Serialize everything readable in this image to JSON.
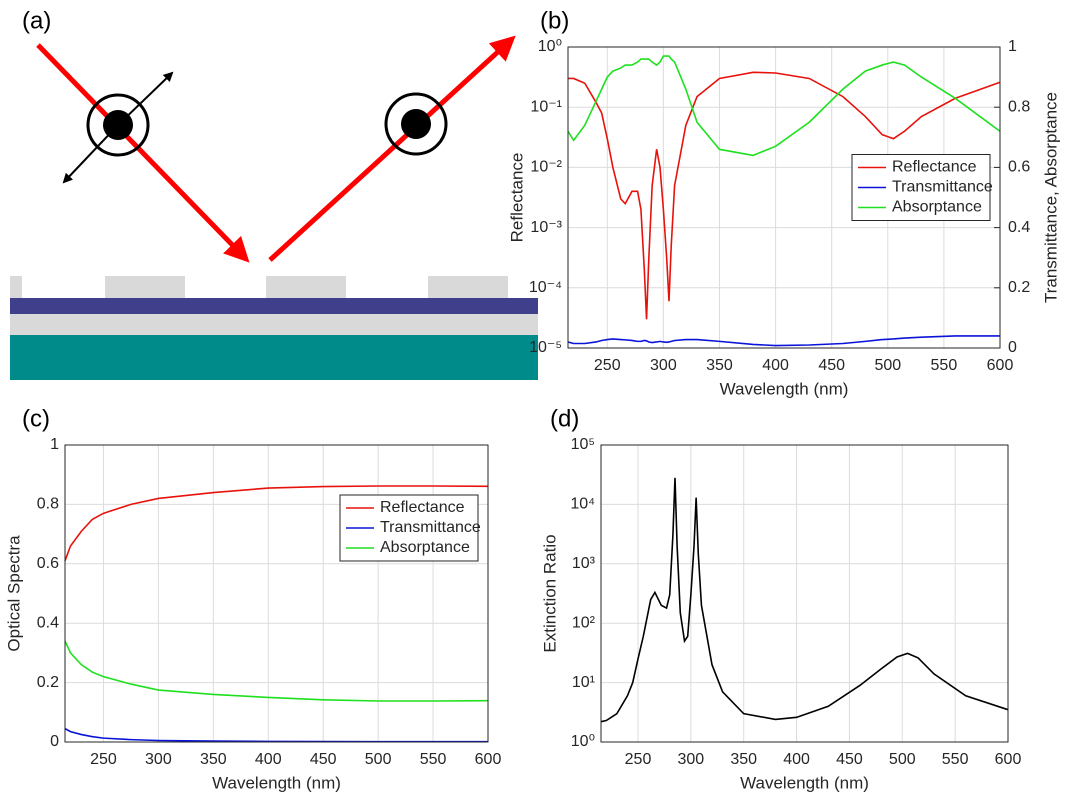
{
  "diagram": {
    "label": "(a)"
  },
  "chart_data": [
    {
      "type": "line",
      "panel_label": "(b)",
      "xlabel": "Wavelength (nm)",
      "ylabel": "Reflectance",
      "y2label": "Transmittance, Absorptance",
      "xlim": [
        215,
        600
      ],
      "xticks": [
        250,
        300,
        350,
        400,
        450,
        500,
        550,
        600
      ],
      "yscale": "log",
      "ylim": [
        1e-05,
        1
      ],
      "yticks": [
        {
          "value": 1e-05,
          "label": "10⁻⁵"
        },
        {
          "value": 0.0001,
          "label": "10⁻⁴"
        },
        {
          "value": 0.001,
          "label": "10⁻³"
        },
        {
          "value": 0.01,
          "label": "10⁻²"
        },
        {
          "value": 0.1,
          "label": "10⁻¹"
        },
        {
          "value": 1,
          "label": "10⁰"
        }
      ],
      "y2lim": [
        0,
        1
      ],
      "y2ticks": [
        0,
        0.2,
        0.4,
        0.6,
        0.8,
        1
      ],
      "grid": true,
      "legend": "right",
      "x": [
        215,
        220,
        230,
        240,
        245,
        250,
        255,
        262,
        266,
        272,
        277,
        280,
        283,
        285,
        287,
        290,
        294,
        297,
        300,
        303,
        305,
        307,
        310,
        320,
        330,
        350,
        380,
        400,
        430,
        460,
        480,
        495,
        505,
        515,
        530,
        560,
        600
      ],
      "series": [
        {
          "name": "Reflectance",
          "color": "#e8120c",
          "values": [
            0.3,
            0.3,
            0.25,
            0.12,
            0.08,
            0.03,
            0.01,
            0.003,
            0.0025,
            0.004,
            0.004,
            0.002,
            0.0002,
            3e-05,
            0.0003,
            0.005,
            0.02,
            0.01,
            0.002,
            0.0003,
            6e-05,
            0.0005,
            0.005,
            0.05,
            0.15,
            0.3,
            0.38,
            0.37,
            0.3,
            0.15,
            0.07,
            0.035,
            0.03,
            0.04,
            0.07,
            0.14,
            0.26
          ]
        },
        {
          "name": "Transmittance",
          "color": "#0a14d8",
          "axis": "y2",
          "values": [
            0.02,
            0.015,
            0.015,
            0.02,
            0.025,
            0.028,
            0.03,
            0.028,
            0.027,
            0.025,
            0.022,
            0.022,
            0.025,
            0.024,
            0.02,
            0.018,
            0.02,
            0.022,
            0.02,
            0.019,
            0.02,
            0.022,
            0.025,
            0.028,
            0.028,
            0.022,
            0.012,
            0.008,
            0.01,
            0.015,
            0.022,
            0.028,
            0.03,
            0.033,
            0.036,
            0.04,
            0.04
          ]
        },
        {
          "name": "Absorptance",
          "color": "#1ee01e",
          "axis": "y2",
          "values": [
            0.72,
            0.69,
            0.74,
            0.82,
            0.86,
            0.9,
            0.92,
            0.93,
            0.94,
            0.94,
            0.95,
            0.96,
            0.96,
            0.96,
            0.96,
            0.95,
            0.94,
            0.95,
            0.97,
            0.97,
            0.97,
            0.96,
            0.95,
            0.86,
            0.75,
            0.66,
            0.64,
            0.67,
            0.75,
            0.86,
            0.92,
            0.94,
            0.95,
            0.94,
            0.9,
            0.83,
            0.72
          ]
        }
      ]
    },
    {
      "type": "line",
      "panel_label": "(c)",
      "xlabel": "Wavelength (nm)",
      "ylabel": "Optical Spectra",
      "xlim": [
        215,
        600
      ],
      "xticks": [
        250,
        300,
        350,
        400,
        450,
        500,
        550,
        600
      ],
      "ylim": [
        0,
        1
      ],
      "yticks": [
        0,
        0.2,
        0.4,
        0.6,
        0.8,
        1
      ],
      "grid": true,
      "legend": "upper right",
      "x": [
        215,
        220,
        230,
        240,
        250,
        275,
        300,
        350,
        400,
        450,
        500,
        550,
        600
      ],
      "series": [
        {
          "name": "Reflectance",
          "color": "#e8120c",
          "values": [
            0.61,
            0.66,
            0.71,
            0.75,
            0.77,
            0.8,
            0.82,
            0.84,
            0.855,
            0.86,
            0.862,
            0.862,
            0.861
          ]
        },
        {
          "name": "Transmittance",
          "color": "#0a14d8",
          "values": [
            0.045,
            0.035,
            0.025,
            0.018,
            0.013,
            0.008,
            0.005,
            0.003,
            0.002,
            0.0015,
            0.001,
            0.001,
            0.001
          ]
        },
        {
          "name": "Absorptance",
          "color": "#1ee01e",
          "values": [
            0.34,
            0.3,
            0.26,
            0.235,
            0.22,
            0.195,
            0.175,
            0.16,
            0.15,
            0.142,
            0.138,
            0.138,
            0.139
          ]
        }
      ]
    },
    {
      "type": "line",
      "panel_label": "(d)",
      "xlabel": "Wavelength (nm)",
      "ylabel": "Extinction Ratio",
      "xlim": [
        215,
        600
      ],
      "xticks": [
        250,
        300,
        350,
        400,
        450,
        500,
        550,
        600
      ],
      "yscale": "log",
      "ylim": [
        1,
        100000
      ],
      "yticks": [
        {
          "value": 1,
          "label": "10⁰"
        },
        {
          "value": 10,
          "label": "10¹"
        },
        {
          "value": 100,
          "label": "10²"
        },
        {
          "value": 1000,
          "label": "10³"
        },
        {
          "value": 10000,
          "label": "10⁴"
        },
        {
          "value": 100000,
          "label": "10⁵"
        }
      ],
      "grid": true,
      "x": [
        215,
        220,
        230,
        240,
        245,
        250,
        255,
        262,
        266,
        272,
        277,
        280,
        283,
        285,
        287,
        290,
        294,
        297,
        300,
        303,
        305,
        307,
        310,
        320,
        330,
        350,
        380,
        400,
        430,
        460,
        480,
        495,
        505,
        515,
        530,
        560,
        600
      ],
      "series": [
        {
          "color": "#000000",
          "values": [
            2.2,
            2.3,
            3,
            6,
            10,
            25,
            60,
            250,
            330,
            200,
            180,
            300,
            3000,
            28000,
            2000,
            150,
            50,
            60,
            300,
            2000,
            13000,
            1500,
            200,
            20,
            7,
            3,
            2.4,
            2.6,
            4,
            9,
            17,
            27,
            31,
            26,
            14,
            6,
            3.5
          ]
        }
      ]
    }
  ]
}
